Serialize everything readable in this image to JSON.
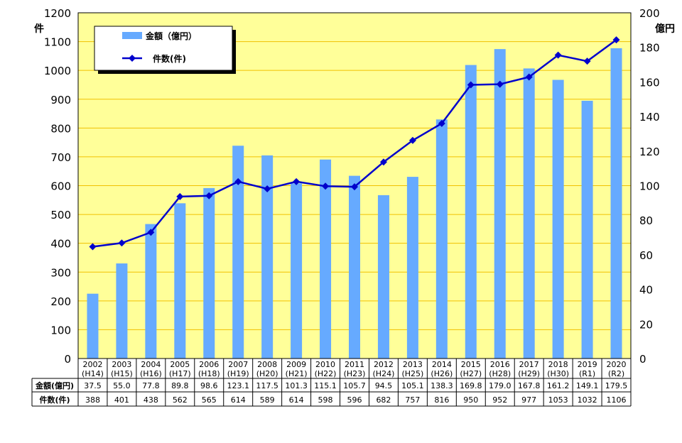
{
  "chart_data": {
    "type": "bar+line",
    "categories": [
      "2002",
      "2003",
      "2004",
      "2005",
      "2006",
      "2007",
      "2008",
      "2009",
      "2010",
      "2011",
      "2012",
      "2013",
      "2014",
      "2015",
      "2016",
      "2017",
      "2018",
      "2019",
      "2020"
    ],
    "era_labels": [
      "(H14)",
      "(H15)",
      "(H16)",
      "(H17)",
      "(H18)",
      "(H19)",
      "(H20)",
      "(H21)",
      "(H22)",
      "(H23)",
      "(H24)",
      "(H25)",
      "(H26)",
      "(H27)",
      "(H28)",
      "(H29)",
      "(H30)",
      "(R1)",
      "(R2)"
    ],
    "series": [
      {
        "name": "金額（億円）",
        "table_label": "金額(億円)",
        "type": "bar",
        "axis": "right",
        "color": "#66AAFF",
        "values": [
          37.5,
          55.0,
          77.8,
          89.8,
          98.6,
          123.1,
          117.5,
          101.3,
          115.1,
          105.7,
          94.5,
          105.1,
          138.3,
          169.8,
          179.0,
          167.8,
          161.2,
          149.1,
          179.5
        ]
      },
      {
        "name": "件数(件)",
        "table_label": "件数(件)",
        "type": "line",
        "axis": "left",
        "color": "#0000CC",
        "values": [
          388,
          401,
          438,
          562,
          565,
          614,
          589,
          614,
          598,
          596,
          682,
          757,
          816,
          950,
          952,
          977,
          1053,
          1032,
          1106
        ]
      }
    ],
    "left_axis": {
      "label": "件",
      "range": [
        0,
        1200
      ],
      "ticks": [
        0,
        100,
        200,
        300,
        400,
        500,
        600,
        700,
        800,
        900,
        1000,
        1100,
        1200
      ]
    },
    "right_axis": {
      "label": "億円",
      "range": [
        0,
        200
      ],
      "ticks": [
        0,
        20,
        40,
        60,
        80,
        100,
        120,
        140,
        160,
        180,
        200
      ]
    },
    "legend_position": "top-left",
    "grid": true,
    "background_color": "#FFFF99",
    "grid_color": "#F0C000"
  }
}
